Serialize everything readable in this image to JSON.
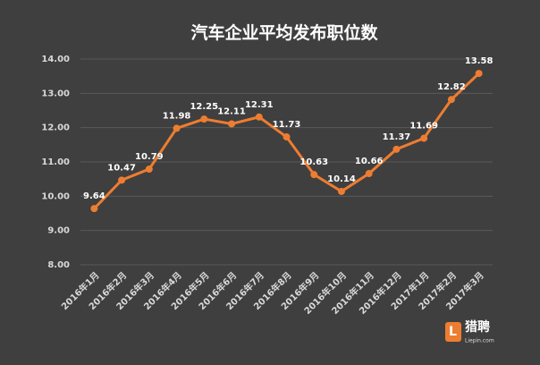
{
  "chart_data": {
    "type": "line",
    "title": "汽车企业平均发布职位数",
    "categories": [
      "2016年1月",
      "2016年2月",
      "2016年3月",
      "2016年4月",
      "2016年5月",
      "2016年6月",
      "2016年7月",
      "2016年8月",
      "2016年9月",
      "2016年10月",
      "2016年11月",
      "2016年12月",
      "2017年1月",
      "2017年2月",
      "2017年3月"
    ],
    "values": [
      9.64,
      10.47,
      10.79,
      11.98,
      12.25,
      12.11,
      12.31,
      11.73,
      10.63,
      10.14,
      10.66,
      11.37,
      11.69,
      12.82,
      13.58
    ],
    "color": "#ed7d31",
    "ylim": [
      8,
      14
    ],
    "yticks": [
      {
        "value": 8,
        "label": "8.00"
      },
      {
        "value": 9,
        "label": "9.00"
      },
      {
        "value": 10,
        "label": "10.00"
      },
      {
        "value": 11,
        "label": "11.00"
      },
      {
        "value": 12,
        "label": "12.00"
      },
      {
        "value": 13,
        "label": "13.00"
      },
      {
        "value": 14,
        "label": "14.00"
      }
    ],
    "grid": true
  },
  "logo": {
    "name": "猎聘",
    "url": "Liepin.com"
  }
}
